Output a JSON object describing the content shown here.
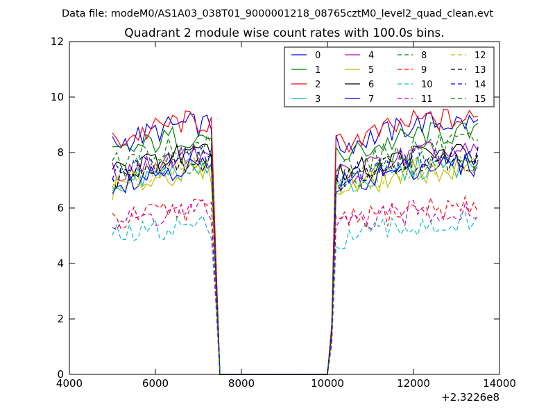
{
  "figure": {
    "suptitle": "Data file: modeM0/AS1A03_038T01_9000001218_08765cztM0_level2_quad_clean.evt"
  },
  "chart_data": {
    "type": "line",
    "title": "Quadrant 2 module wise count rates with 100.0s bins.",
    "xlabel": "",
    "ylabel": "",
    "x_offset_label": "+2.3226e8",
    "xlim": [
      4000,
      14000
    ],
    "ylim": [
      0,
      12
    ],
    "xticks": [
      4000,
      6000,
      8000,
      10000,
      12000,
      14000
    ],
    "yticks": [
      0,
      2,
      4,
      6,
      8,
      10,
      12
    ],
    "grid": false,
    "legend_position": "top-right",
    "legend_columns": 4,
    "series": [
      {
        "name": "0",
        "color": "#0000ff",
        "dash": "solid",
        "base": 8.9
      },
      {
        "name": "1",
        "color": "#008000",
        "dash": "solid",
        "base": 8.5
      },
      {
        "name": "2",
        "color": "#ff0000",
        "dash": "solid",
        "base": 9.0
      },
      {
        "name": "3",
        "color": "#00bfbf",
        "dash": "solid",
        "base": 7.3
      },
      {
        "name": "4",
        "color": "#bf00bf",
        "dash": "solid",
        "base": 7.8
      },
      {
        "name": "5",
        "color": "#bfbf00",
        "dash": "solid",
        "base": 7.2
      },
      {
        "name": "6",
        "color": "#000000",
        "dash": "solid",
        "base": 7.8
      },
      {
        "name": "7",
        "color": "#0000ff",
        "dash": "solid",
        "base": 7.4
      },
      {
        "name": "8",
        "color": "#008000",
        "dash": "dashed",
        "base": 7.6
      },
      {
        "name": "9",
        "color": "#ff0000",
        "dash": "dashed",
        "base": 5.9
      },
      {
        "name": "10",
        "color": "#00bfbf",
        "dash": "dashed",
        "base": 5.3
      },
      {
        "name": "11",
        "color": "#bf00bf",
        "dash": "dashed",
        "base": 5.8
      },
      {
        "name": "12",
        "color": "#bfbf00",
        "dash": "dashed",
        "base": 7.4
      },
      {
        "name": "13",
        "color": "#000000",
        "dash": "dashed",
        "base": 7.6
      },
      {
        "name": "14",
        "color": "#0000ff",
        "dash": "dashed",
        "base": 7.7
      },
      {
        "name": "15",
        "color": "#008000",
        "dash": "dashed",
        "base": 8.1
      }
    ],
    "time_segments": [
      {
        "x_start": 5000,
        "x_end": 7300,
        "step": 100
      },
      {
        "x_start": 10200,
        "x_end": 13500,
        "step": 100
      }
    ],
    "transitions": [
      {
        "x": 7400,
        "value_fraction": 0.5
      },
      {
        "x": 7500,
        "value_fraction": 0.0
      },
      {
        "x": 10100,
        "value_fraction": 0.2
      }
    ],
    "gap_value": 0
  }
}
